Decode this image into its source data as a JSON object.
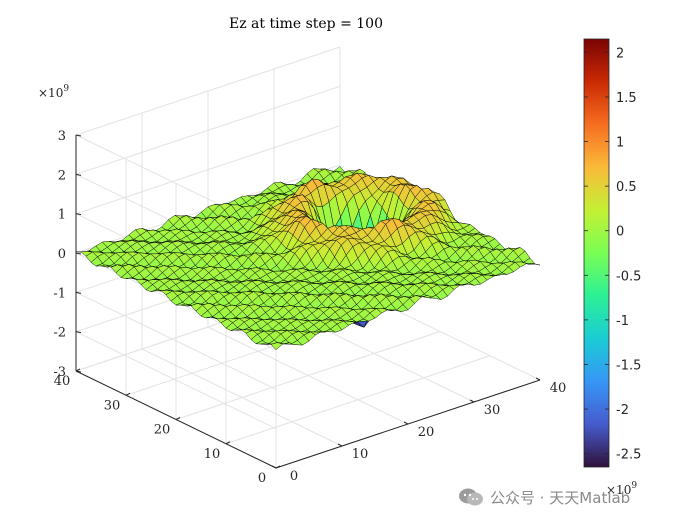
{
  "chart_data": {
    "type": "surface",
    "title": "Ez at time step = 100",
    "x_ticks": [
      "0",
      "10",
      "20",
      "30",
      "40"
    ],
    "y_ticks": [
      "0",
      "10",
      "20",
      "30",
      "40"
    ],
    "z_ticks": [
      "-3",
      "-2",
      "-1",
      "0",
      "1",
      "2",
      "3"
    ],
    "xlim": [
      0,
      40
    ],
    "ylim": [
      0,
      40
    ],
    "zlim": [
      -3000000000.0,
      3000000000.0
    ],
    "z_multiplier": "×10",
    "z_multiplier_exp": "9",
    "grid": true,
    "colormap": "turbo",
    "colorbar": {
      "position": "right",
      "ticks": [
        "2",
        "1.5",
        "1",
        "0.5",
        "0",
        "-0.5",
        "-1",
        "-1.5",
        "-2",
        "-2.5"
      ],
      "clim": [
        -2650000000.0,
        2150000000.0
      ],
      "multiplier": "×10",
      "multiplier_exp": "9"
    },
    "surface": {
      "grid_size": 41,
      "description_of_field": "Ez values sampled on a 41x41 grid; central pulse peaks near -2.6e9 at about (30,23), surrounded by a positive ring near 0.8e9, small ripples elsewhere",
      "peak_location": [
        30,
        23
      ],
      "peak_value": -2600000000.0,
      "ring_value": 800000000.0
    }
  },
  "watermark": {
    "text": "公众号 · 天天Matlab",
    "icon": "wechat-icon"
  }
}
